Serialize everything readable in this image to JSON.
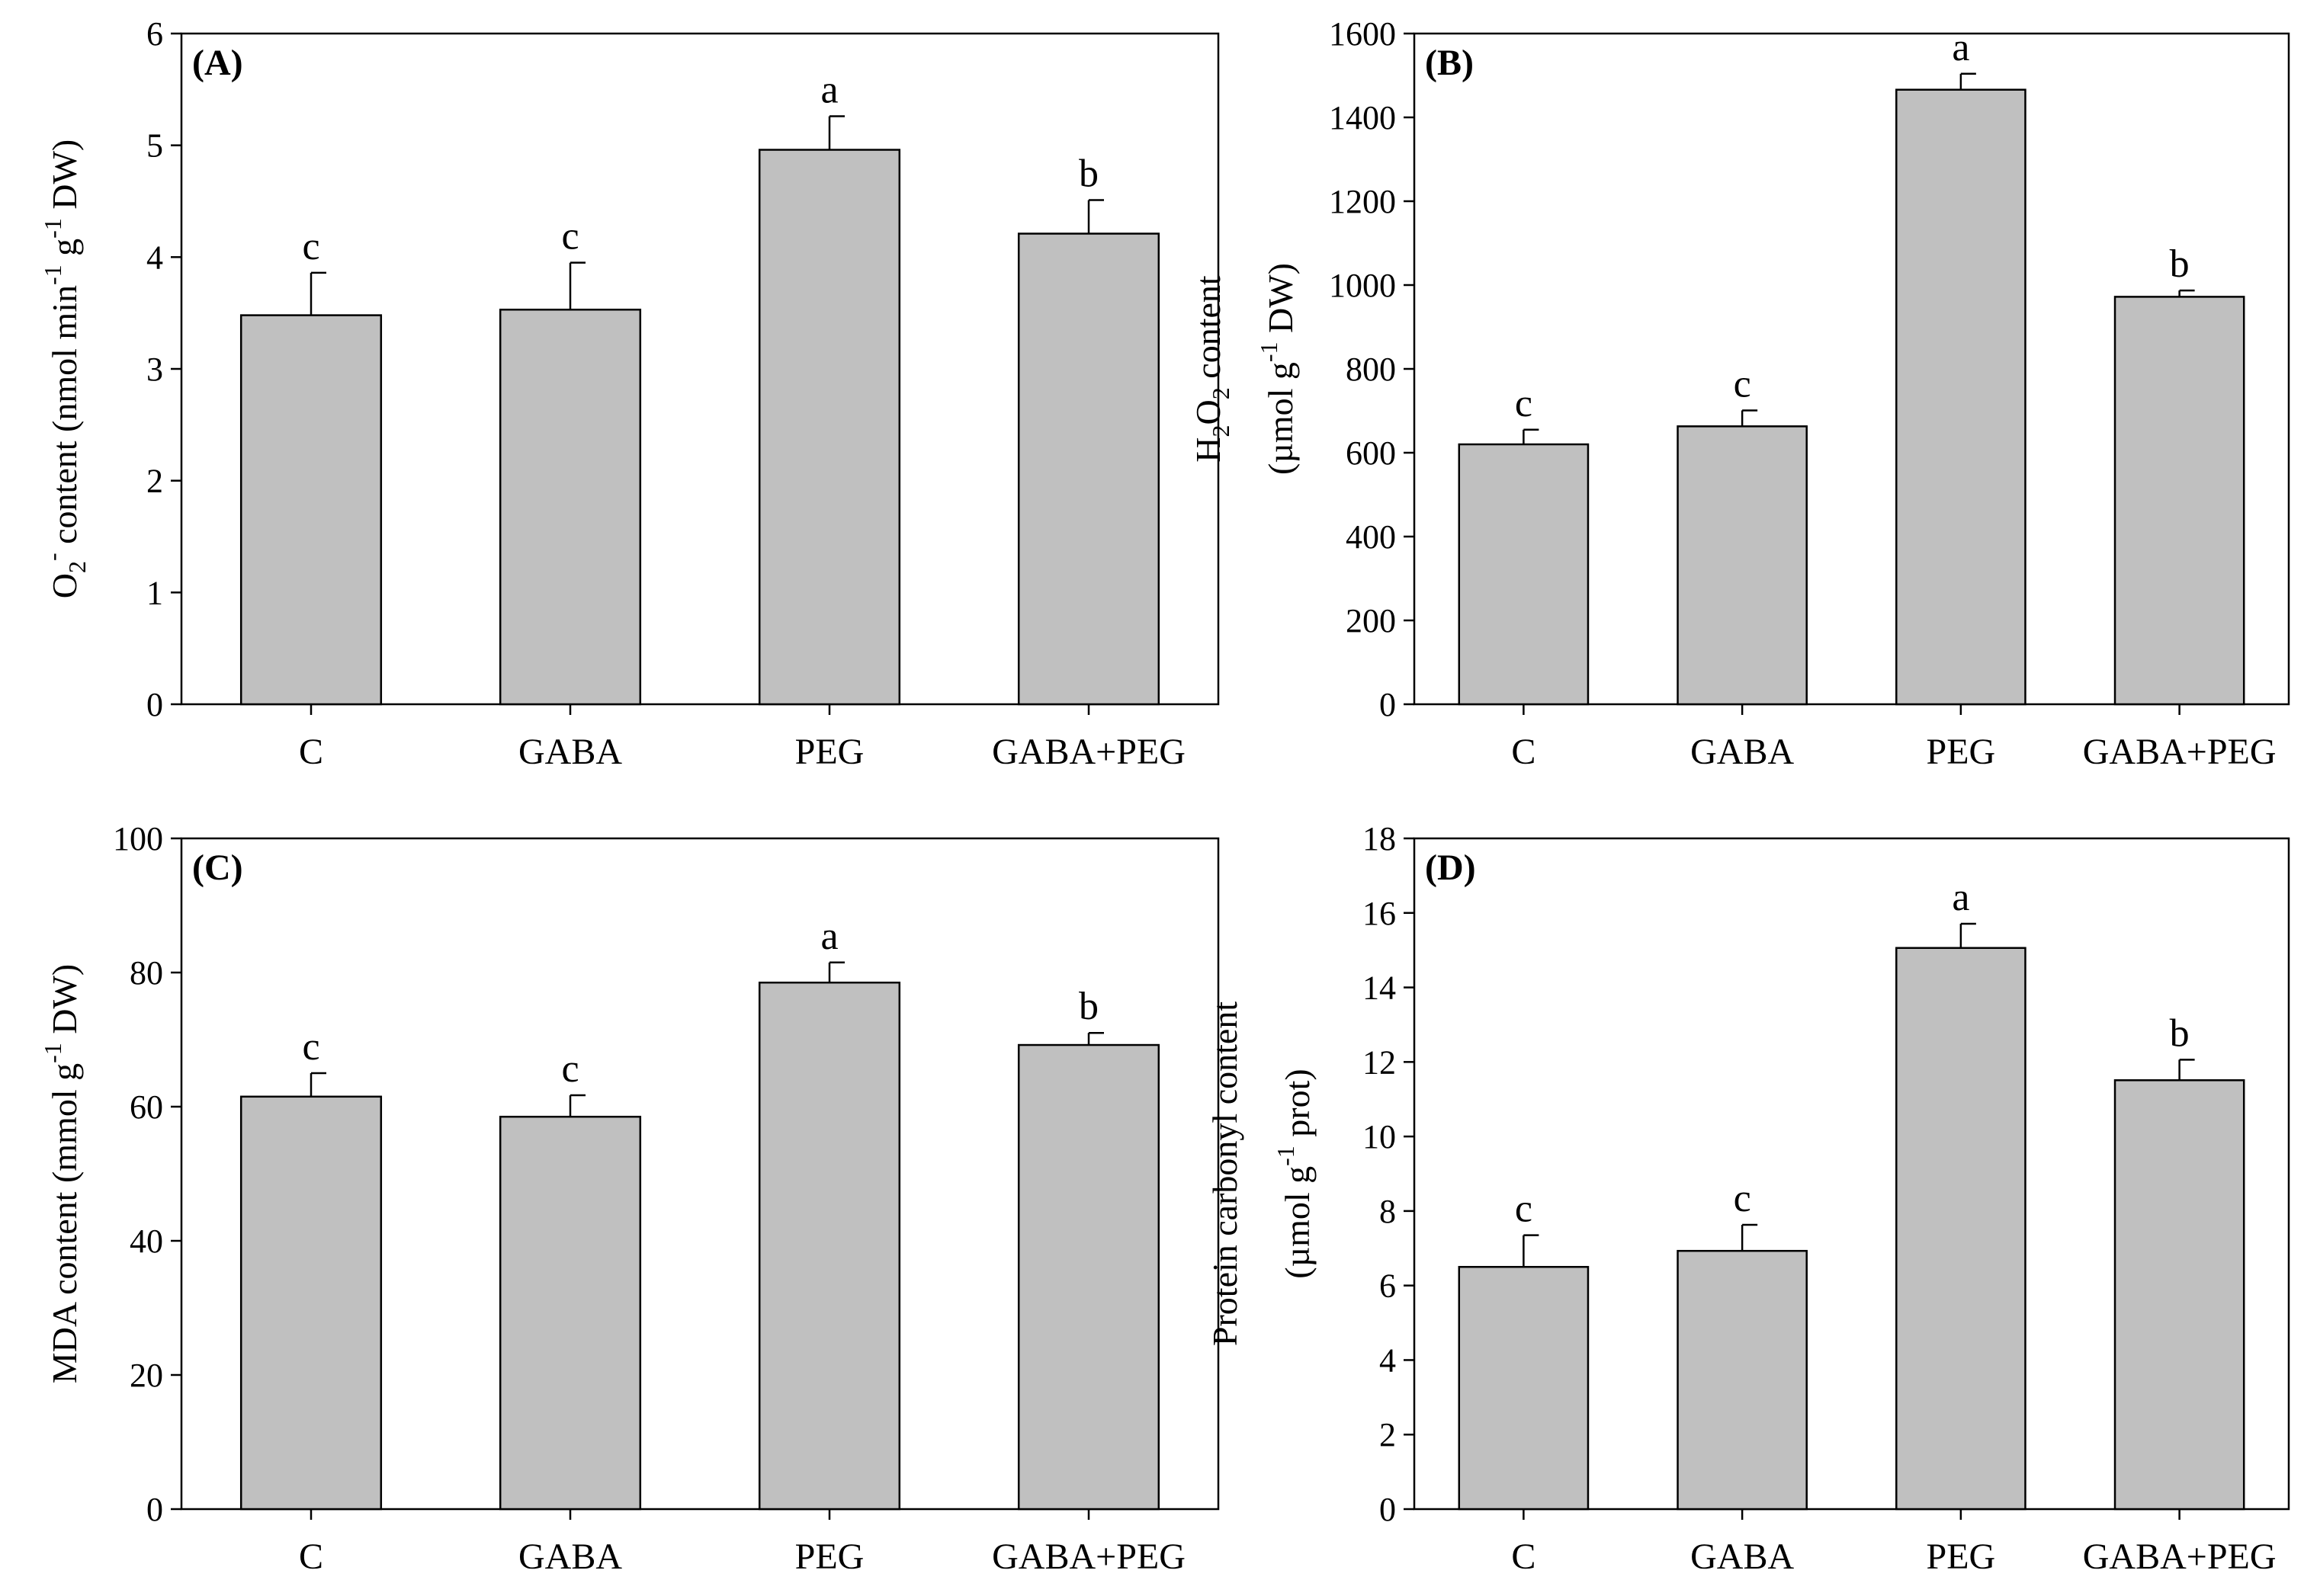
{
  "chart_data": [
    {
      "type": "bar",
      "panel": "(A)",
      "categories": [
        "C",
        "GABA",
        "PEG",
        "GABA+PEG"
      ],
      "values": [
        3.48,
        3.53,
        4.96,
        4.21
      ],
      "errors": [
        0.38,
        0.42,
        0.3,
        0.3
      ],
      "letters": [
        "c",
        "c",
        "a",
        "b"
      ],
      "ylim": [
        0,
        6
      ],
      "yticks": [
        0,
        1,
        2,
        3,
        4,
        5,
        6
      ],
      "ylabel": {
        "segments": [
          {
            "text": "O",
            "style": "normal"
          },
          {
            "text": "2",
            "style": "sub"
          },
          {
            "text": "-",
            "style": "sup"
          },
          {
            "text": " content (nmol min",
            "style": "normal"
          },
          {
            "text": "-1",
            "style": "sup"
          },
          {
            "text": " g",
            "style": "normal"
          },
          {
            "text": "-1",
            "style": "sup"
          },
          {
            "text": " DW)",
            "style": "normal"
          }
        ]
      },
      "bar_color": "#c0c0c0"
    },
    {
      "type": "bar",
      "panel": "(B)",
      "categories": [
        "C",
        "GABA",
        "PEG",
        "GABA+PEG"
      ],
      "values": [
        620,
        663,
        1466,
        972
      ],
      "errors": [
        35,
        38,
        38,
        15
      ],
      "letters": [
        "c",
        "c",
        "a",
        "b"
      ],
      "ylim": [
        0,
        1600
      ],
      "yticks": [
        0,
        200,
        400,
        600,
        800,
        1000,
        1200,
        1400,
        1600
      ],
      "ylabel": {
        "line1": [
          {
            "text": "H",
            "style": "normal"
          },
          {
            "text": "2",
            "style": "sub"
          },
          {
            "text": "O",
            "style": "normal"
          },
          {
            "text": "2",
            "style": "sub"
          },
          {
            "text": " content",
            "style": "normal"
          }
        ],
        "line2": [
          {
            "text": "(µmol g",
            "style": "normal"
          },
          {
            "text": "-1",
            "style": "sup"
          },
          {
            "text": " DW)",
            "style": "normal"
          }
        ]
      },
      "bar_color": "#c0c0c0"
    },
    {
      "type": "bar",
      "panel": "(C)",
      "categories": [
        "C",
        "GABA",
        "PEG",
        "GABA+PEG"
      ],
      "values": [
        61.5,
        58.5,
        78.5,
        69.2
      ],
      "errors": [
        3.5,
        3.2,
        3.0,
        1.8
      ],
      "letters": [
        "c",
        "c",
        "a",
        "b"
      ],
      "ylim": [
        0,
        100
      ],
      "yticks": [
        0,
        20,
        40,
        60,
        80,
        100
      ],
      "ylabel": {
        "segments": [
          {
            "text": "MDA content (mmol g",
            "style": "normal"
          },
          {
            "text": "-1",
            "style": "sup"
          },
          {
            "text": " DW)",
            "style": "normal"
          }
        ]
      },
      "bar_color": "#c0c0c0"
    },
    {
      "type": "bar",
      "panel": "(D)",
      "categories": [
        "C",
        "GABA",
        "PEG",
        "GABA+PEG"
      ],
      "values": [
        6.5,
        6.93,
        15.06,
        11.51
      ],
      "errors": [
        0.85,
        0.7,
        0.65,
        0.55
      ],
      "letters": [
        "c",
        "c",
        "a",
        "b"
      ],
      "ylim": [
        0,
        18
      ],
      "yticks": [
        0,
        2,
        4,
        6,
        8,
        10,
        12,
        14,
        16,
        18
      ],
      "ylabel": {
        "line1": [
          {
            "text": "Protein carbonyl content",
            "style": "normal"
          }
        ],
        "line2": [
          {
            "text": "(µmol g",
            "style": "normal"
          },
          {
            "text": "-1",
            "style": "sup"
          },
          {
            "text": " prot)",
            "style": "normal"
          }
        ]
      },
      "bar_color": "#c0c0c0"
    }
  ]
}
